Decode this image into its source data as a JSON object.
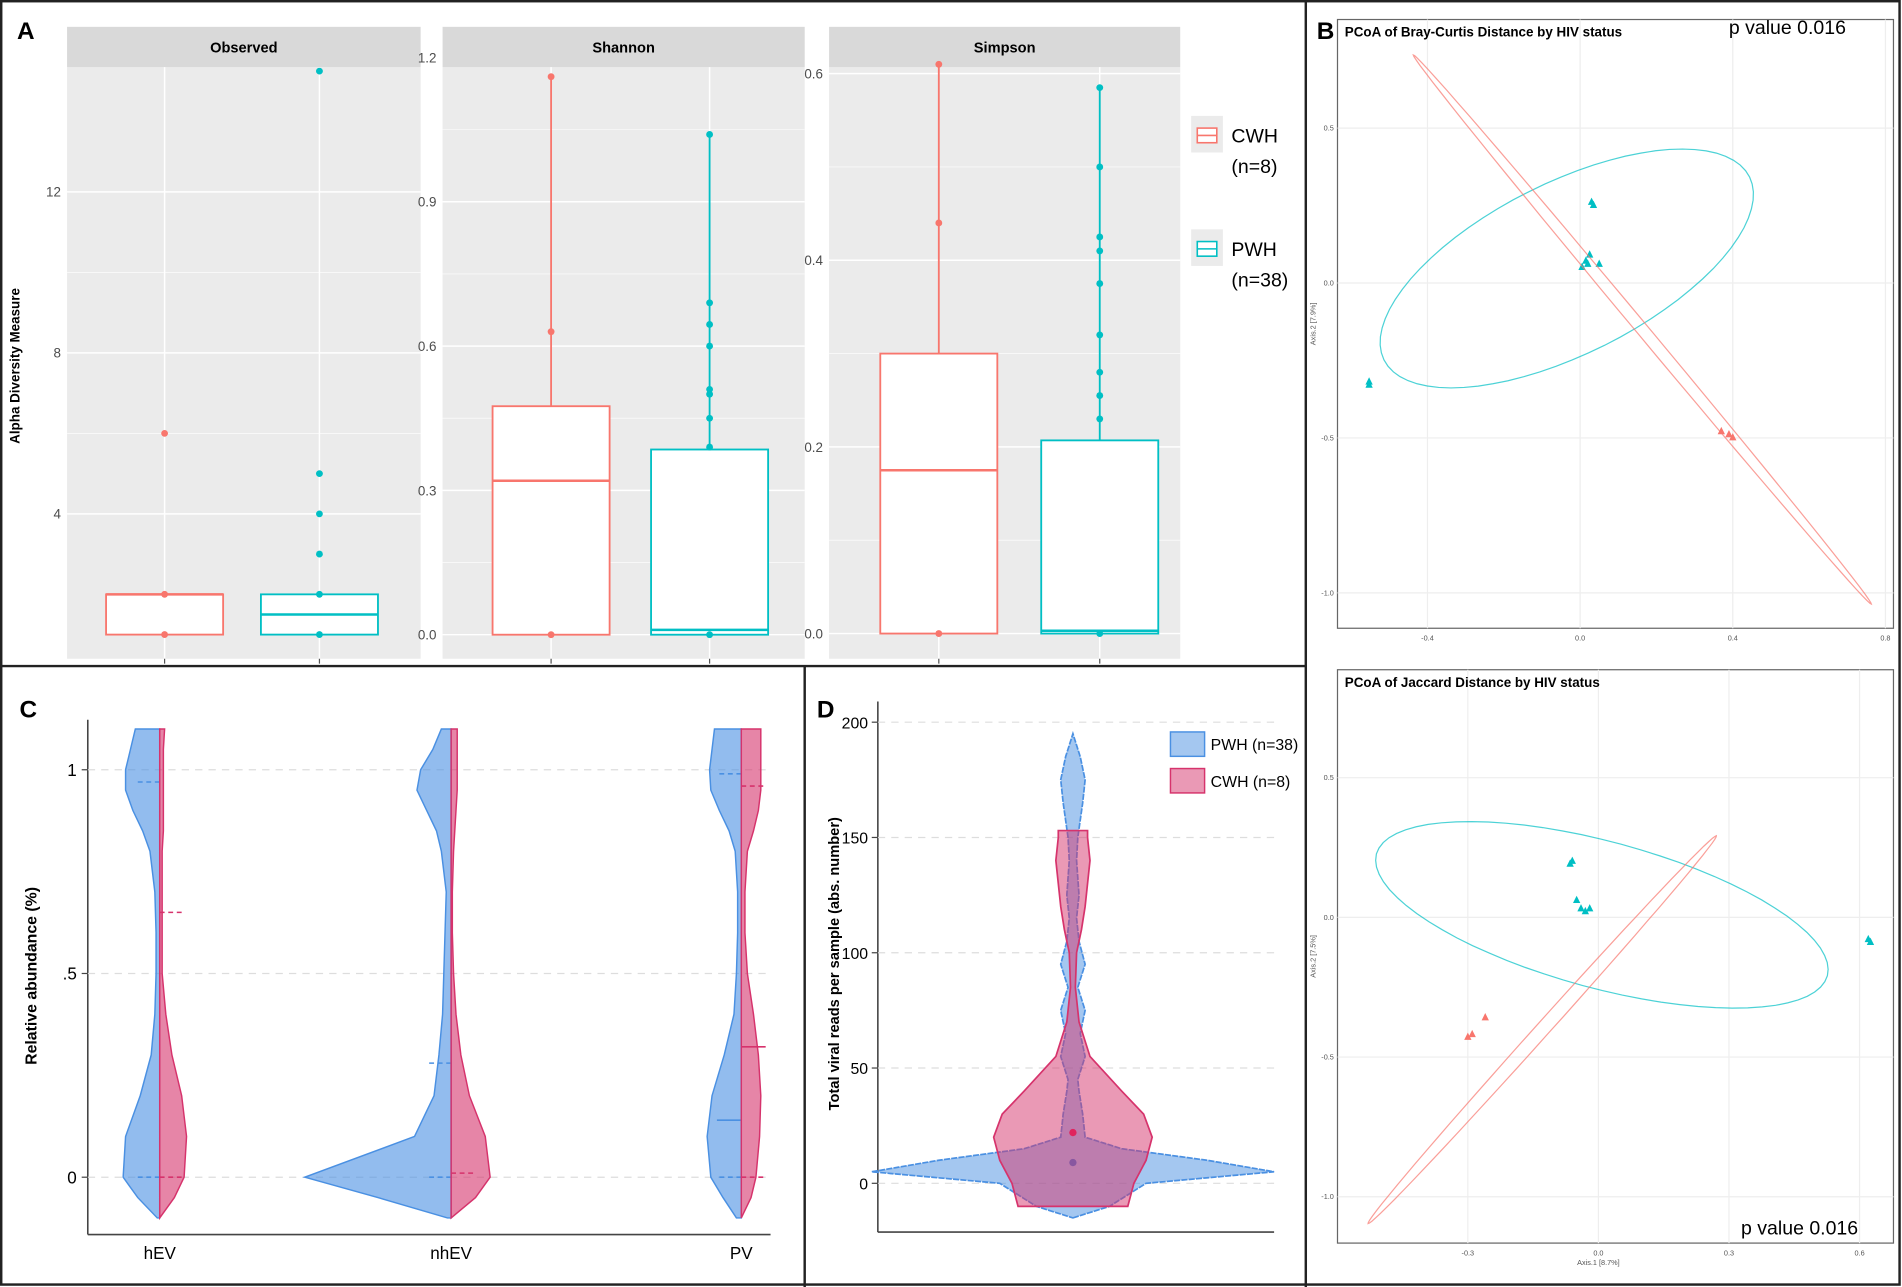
{
  "panels": {
    "a": "A",
    "b": "B",
    "c": "C",
    "d": "D"
  },
  "colors": {
    "cwh": "#F8766D",
    "pwh": "#00BFC4",
    "pwh_violin": "#4A90E2",
    "cwh_violin": "#D6336C"
  },
  "chart_data": [
    {
      "id": "alpha-diversity",
      "type": "box",
      "ylabel": "Alpha Diversity Measure",
      "legend": [
        {
          "name": "CWH",
          "n": "(n=8)"
        },
        {
          "name": "PWH",
          "n": "(n=38)"
        }
      ],
      "legend_position": "right",
      "facets": [
        {
          "title": "Observed",
          "yticks": [
            4,
            8,
            12
          ],
          "tick_labels": [
            "4",
            "8",
            "12"
          ],
          "ylim": [
            0.4,
            15.1
          ],
          "boxes": [
            {
              "group": "CWH",
              "q1": 1,
              "median": 2,
              "q3": 2,
              "whisker_low": 1,
              "whisker_high": 2,
              "points": [
                1,
                2,
                6
              ]
            },
            {
              "group": "PWH",
              "q1": 1,
              "median": 1.5,
              "q3": 2,
              "whisker_low": 1,
              "whisker_high": 2,
              "points": [
                1,
                2,
                3,
                4,
                5,
                15
              ]
            }
          ]
        },
        {
          "title": "Shannon",
          "yticks": [
            0,
            0.3,
            0.6,
            0.9,
            1.2
          ],
          "tick_labels": [
            "0.0",
            "0.3",
            "0.6",
            "0.9",
            "1.2"
          ],
          "ylim": [
            -0.05,
            1.18
          ],
          "boxes": [
            {
              "group": "CWH",
              "q1": 0,
              "median": 0.32,
              "q3": 0.475,
              "whisker_low": 0,
              "whisker_high": 1.16,
              "points": [
                0,
                0.63,
                1.16
              ]
            },
            {
              "group": "PWH",
              "q1": 0,
              "median": 0.01,
              "q3": 0.385,
              "whisker_low": 0,
              "whisker_high": 1.04,
              "points": [
                0,
                0.39,
                0.45,
                0.5,
                0.51,
                0.6,
                0.645,
                0.69,
                1.04
              ]
            }
          ]
        },
        {
          "title": "Simpson",
          "yticks": [
            0,
            0.2,
            0.4,
            0.6
          ],
          "tick_labels": [
            "0.0",
            "0.2",
            "0.4",
            "0.6"
          ],
          "ylim": [
            -0.027,
            0.607
          ],
          "boxes": [
            {
              "group": "CWH",
              "q1": 0,
              "median": 0.175,
              "q3": 0.3,
              "whisker_low": 0,
              "whisker_high": 0.61,
              "points": [
                0,
                0.44,
                0.61
              ]
            },
            {
              "group": "PWH",
              "q1": 0,
              "median": 0.003,
              "q3": 0.207,
              "whisker_low": 0,
              "whisker_high": 0.585,
              "points": [
                0,
                0.23,
                0.255,
                0.28,
                0.32,
                0.375,
                0.41,
                0.425,
                0.5,
                0.585
              ]
            }
          ]
        }
      ]
    },
    {
      "id": "pcoa-bray-curtis",
      "type": "scatter",
      "title": "PCoA of Bray-Curtis Distance by HIV status",
      "annotation": "p value 0.016",
      "ylabel": "Axis.2  [7.9%]",
      "xticks": [
        -0.4,
        0.0,
        0.4,
        0.8
      ],
      "xtick_labels": [
        "-0.4",
        "0.0",
        "0.4",
        "0.8"
      ],
      "yticks": [
        0.5,
        0.0,
        -0.5,
        -1.0
      ],
      "ytick_labels": [
        "0.5",
        "0.0",
        "-0.5",
        "-1.0"
      ],
      "series": [
        {
          "name": "PWH",
          "points": [
            [
              0.015,
              0.07
            ],
            [
              0.02,
              0.06
            ],
            [
              0.025,
              0.09
            ],
            [
              0.03,
              0.26
            ],
            [
              0.035,
              0.25
            ],
            [
              0.05,
              0.06
            ],
            [
              0.005,
              0.05
            ],
            [
              -0.553,
              -0.33
            ],
            [
              -0.553,
              -0.32
            ]
          ],
          "ellipse": {
            "center": [
              -0.035,
              0.047
            ],
            "u": [
              0.479,
              0.295
            ],
            "v": [
              0.099,
              -0.248
            ]
          }
        },
        {
          "name": "CWH",
          "points": [
            [
              0.37,
              -0.48
            ],
            [
              0.39,
              -0.49
            ],
            [
              0.4,
              -0.5
            ]
          ],
          "ellipse": {
            "center": [
              0.163,
              -0.15
            ],
            "u": [
              0.6,
              -0.886
            ],
            "v": [
              0.012,
              0.0126
            ]
          }
        }
      ]
    },
    {
      "id": "pcoa-jaccard",
      "type": "scatter",
      "title": "PCoA of Jaccard Distance by HIV status",
      "annotation": "p value 0.016",
      "xlabel": "Axis.1  [8.7%]",
      "ylabel": "Axis.2  [7.5%]",
      "xticks": [
        -0.3,
        0.0,
        0.3,
        0.6
      ],
      "xtick_labels": [
        "-0.3",
        "0.0",
        "0.3",
        "0.6"
      ],
      "yticks": [
        0.5,
        0.0,
        -0.5,
        -1.0
      ],
      "ytick_labels": [
        "0.5",
        "0.0",
        "-0.5",
        "-1.0"
      ],
      "series": [
        {
          "name": "PWH",
          "points": [
            [
              -0.04,
              0.03
            ],
            [
              -0.05,
              0.06
            ],
            [
              -0.03,
              0.02
            ],
            [
              -0.02,
              0.03
            ],
            [
              -0.065,
              0.19
            ],
            [
              -0.06,
              0.2
            ],
            [
              0.62,
              -0.08
            ],
            [
              0.625,
              -0.09
            ]
          ],
          "ellipse": {
            "center": [
              0.008,
              0.009
            ],
            "u": [
              0.518,
              -0.218
            ],
            "v": [
              -0.044,
              -0.253
            ]
          }
        },
        {
          "name": "CWH",
          "points": [
            [
              -0.29,
              -0.42
            ],
            [
              -0.3,
              -0.43
            ],
            [
              -0.26,
              -0.36
            ]
          ],
          "ellipse": {
            "center": [
              -0.129,
              -0.402
            ],
            "u": [
              0.4,
              0.694
            ],
            "v": [
              0.014,
              -0.013
            ]
          }
        }
      ]
    },
    {
      "id": "relative-abundance",
      "type": "violin",
      "ylabel": "Relative abundance (%)",
      "yticks": [
        0,
        0.5,
        1
      ],
      "ytick_labels": [
        "0",
        ".5",
        "1"
      ],
      "categories": [
        "hEV",
        "nhEV",
        "PV"
      ],
      "y_grid": [
        -0.1,
        -0.05,
        0,
        0.1,
        0.2,
        0.3,
        0.4,
        0.5,
        0.6,
        0.7,
        0.8,
        0.85,
        0.9,
        0.95,
        1.0,
        1.05,
        1.1
      ],
      "series": [
        {
          "name": "PWH",
          "side": "left",
          "density": [
            [
              2,
              18,
              30,
              28,
              16,
              7,
              4,
              3,
              3,
              4,
              8,
              14,
              22,
              28,
              28,
              24,
              20
            ],
            [
              3,
              60,
              120,
              30,
              14,
              10,
              7,
              6,
              5,
              4,
              8,
              12,
              20,
              28,
              25,
              15,
              8
            ],
            [
              4,
              15,
              25,
              28,
              24,
              14,
              6,
              4,
              3,
              3,
              5,
              10,
              18,
              25,
              26,
              24,
              22
            ]
          ],
          "quantiles": [
            [
              0,
              0.97
            ],
            [
              0,
              0.28
            ],
            [
              0,
              0.14,
              0.99
            ]
          ]
        },
        {
          "name": "CWH",
          "side": "right",
          "density": [
            [
              0,
              12,
              20,
              22,
              18,
              10,
              5,
              2,
              2,
              2,
              2,
              3,
              3,
              3,
              3,
              3,
              4
            ],
            [
              0,
              20,
              32,
              28,
              15,
              8,
              4,
              2,
              1,
              1,
              2,
              3,
              4,
              5,
              5,
              5,
              5
            ],
            [
              0,
              8,
              12,
              15,
              16,
              14,
              10,
              5,
              3,
              3,
              5,
              10,
              14,
              16,
              16,
              16,
              16
            ]
          ],
          "quantiles": [
            [
              0,
              0.65
            ],
            [
              0.01
            ],
            [
              0,
              0.32,
              0.96
            ]
          ]
        }
      ]
    },
    {
      "id": "total-viral-reads",
      "type": "violin",
      "ylabel": "Total viral reads per sample (abs. number)",
      "yticks": [
        0,
        50,
        100,
        150,
        200
      ],
      "ytick_labels": [
        "0",
        "50",
        "100",
        "150",
        "200"
      ],
      "legend": [
        "PWH (n=38)",
        "CWH (n=8)"
      ],
      "legend_position": "top-right",
      "series": [
        {
          "name": "PWH (n=38)",
          "y": [
            -15,
            -10,
            0,
            5,
            10,
            15,
            20,
            30,
            40,
            45,
            55,
            65,
            75,
            85,
            95,
            105,
            115,
            125,
            140,
            150,
            165,
            175,
            185,
            195
          ],
          "density": [
            0,
            30,
            60,
            165,
            110,
            40,
            10,
            8,
            5,
            4,
            10,
            6,
            10,
            4,
            10,
            5,
            3,
            5,
            3,
            4,
            8,
            10,
            6,
            0
          ],
          "center": 9
        },
        {
          "name": "CWH (n=8)",
          "y": [
            -10,
            0,
            10,
            20,
            30,
            40,
            55,
            70,
            85,
            100,
            110,
            120,
            130,
            140,
            150,
            153
          ],
          "density": [
            45,
            50,
            60,
            65,
            58,
            40,
            14,
            5,
            2,
            3,
            7,
            10,
            12,
            14,
            12,
            12
          ],
          "center": 22
        }
      ]
    }
  ]
}
